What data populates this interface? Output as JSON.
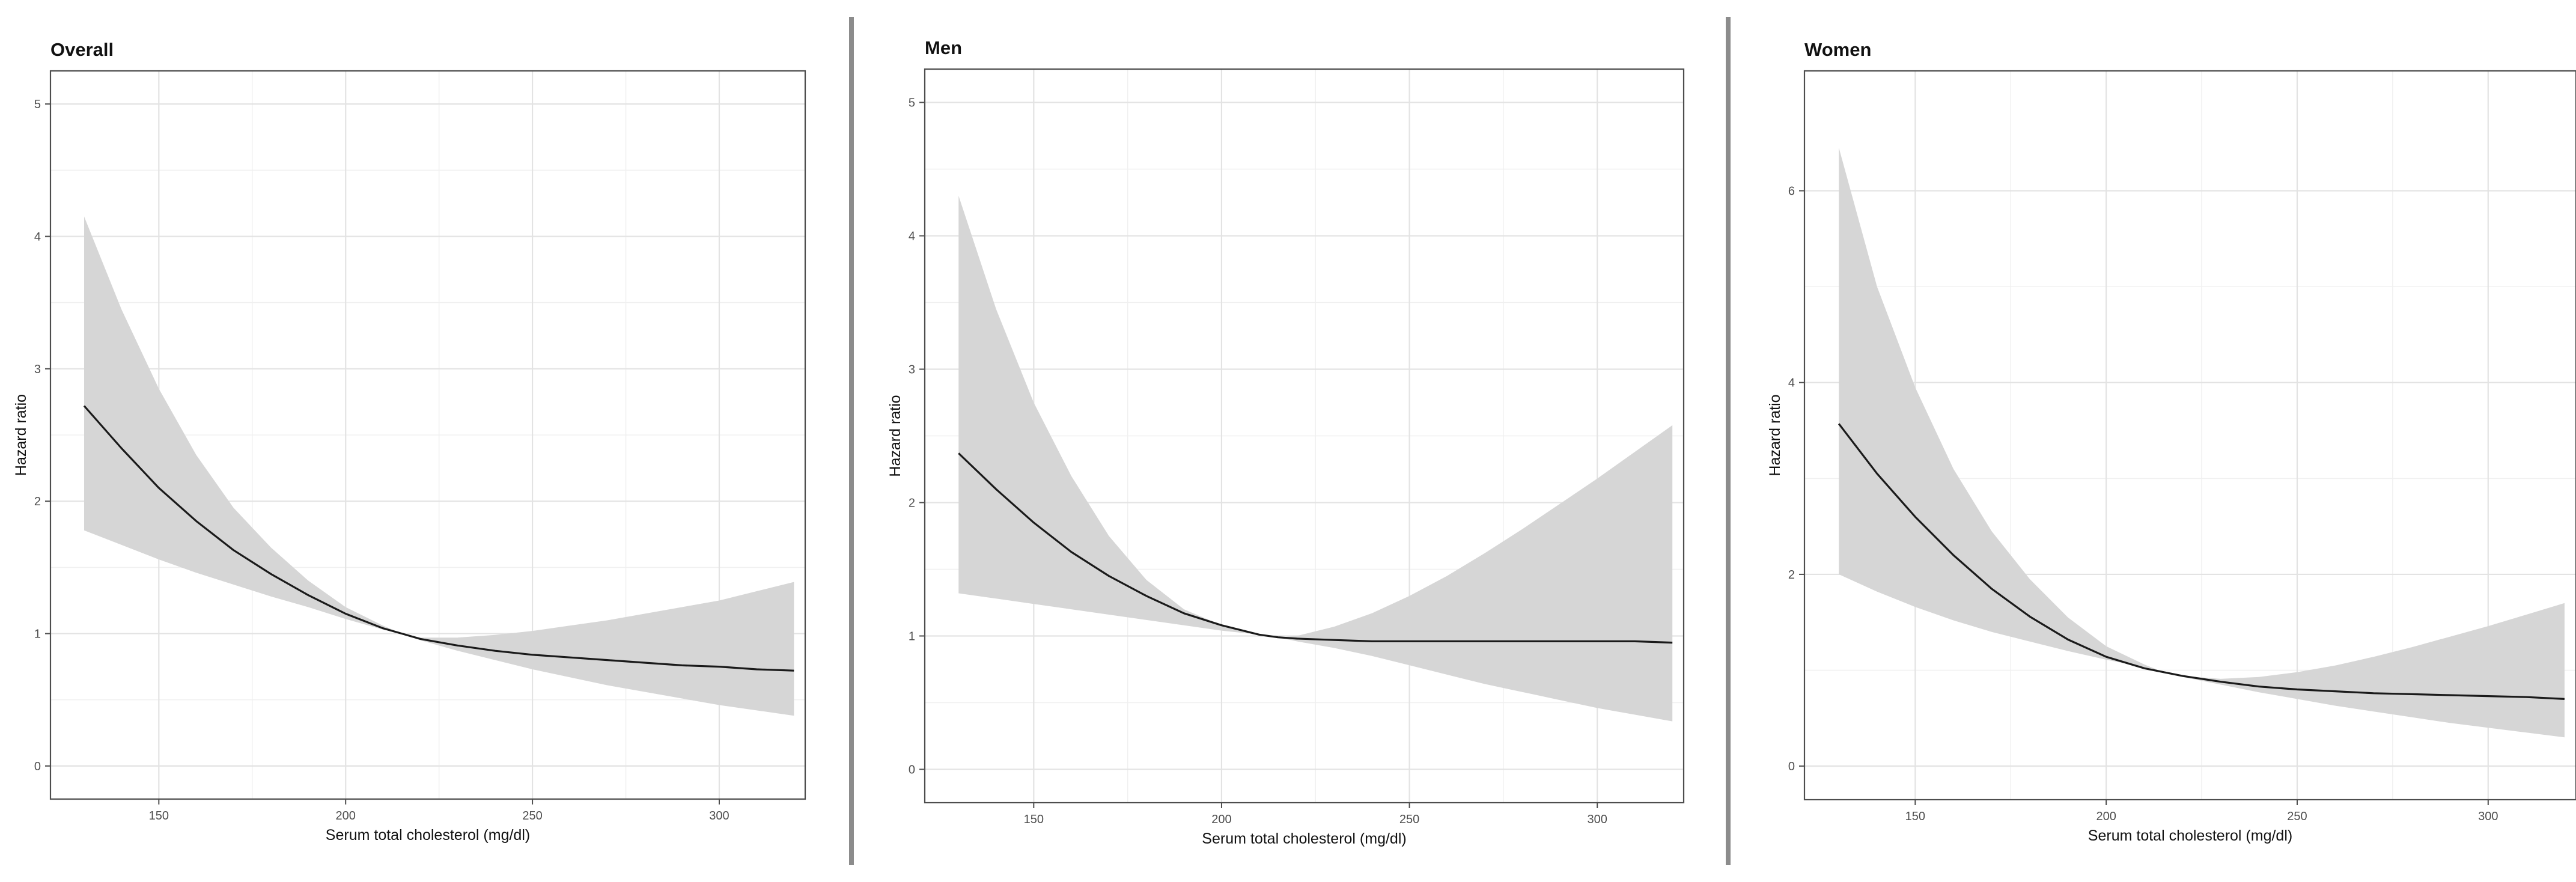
{
  "chart_data": [
    {
      "type": "line",
      "title": "Overall",
      "xlabel": "Serum total cholesterol (mg/dl)",
      "ylabel": "Hazard ratio",
      "xlim": [
        121,
        323
      ],
      "ylim": [
        -0.25,
        5.25
      ],
      "xticks": [
        "150",
        "200",
        "250",
        "300"
      ],
      "yticks": [
        "0",
        "1",
        "2",
        "3",
        "4",
        "5"
      ],
      "grid": true,
      "series": [
        {
          "x": [
            130,
            140,
            150,
            160,
            170,
            180,
            190,
            200,
            210,
            215,
            220,
            230,
            240,
            250,
            260,
            270,
            280,
            290,
            300,
            310,
            320
          ],
          "y": [
            2.72,
            2.4,
            2.1,
            1.85,
            1.63,
            1.45,
            1.29,
            1.15,
            1.04,
            1.0,
            0.96,
            0.91,
            0.87,
            0.84,
            0.82,
            0.8,
            0.78,
            0.76,
            0.75,
            0.73,
            0.72
          ],
          "lower": [
            1.78,
            1.67,
            1.56,
            1.46,
            1.37,
            1.28,
            1.2,
            1.11,
            1.03,
            1.0,
            0.95,
            0.87,
            0.8,
            0.73,
            0.67,
            0.61,
            0.56,
            0.51,
            0.46,
            0.42,
            0.38
          ],
          "upper": [
            4.15,
            3.45,
            2.85,
            2.35,
            1.95,
            1.65,
            1.4,
            1.2,
            1.06,
            1.0,
            0.97,
            0.97,
            0.99,
            1.02,
            1.06,
            1.1,
            1.15,
            1.2,
            1.25,
            1.32,
            1.39
          ]
        }
      ]
    },
    {
      "type": "line",
      "title": "Men",
      "xlabel": "Serum total cholesterol (mg/dl)",
      "ylabel": "Hazard ratio",
      "xlim": [
        121,
        323
      ],
      "ylim": [
        -0.25,
        5.25
      ],
      "xticks": [
        "150",
        "200",
        "250",
        "300"
      ],
      "yticks": [
        "0",
        "1",
        "2",
        "3",
        "4",
        "5"
      ],
      "grid": true,
      "series": [
        {
          "x": [
            130,
            140,
            150,
            160,
            170,
            180,
            190,
            200,
            210,
            215,
            220,
            230,
            240,
            250,
            260,
            270,
            280,
            290,
            300,
            310,
            320
          ],
          "y": [
            2.37,
            2.1,
            1.85,
            1.63,
            1.45,
            1.3,
            1.17,
            1.08,
            1.01,
            0.99,
            0.98,
            0.97,
            0.96,
            0.96,
            0.96,
            0.96,
            0.96,
            0.96,
            0.96,
            0.96,
            0.95
          ],
          "lower": [
            1.32,
            1.28,
            1.24,
            1.2,
            1.16,
            1.12,
            1.08,
            1.04,
            1.01,
            0.99,
            0.96,
            0.91,
            0.85,
            0.78,
            0.71,
            0.64,
            0.58,
            0.52,
            0.46,
            0.41,
            0.36
          ],
          "upper": [
            4.3,
            3.45,
            2.75,
            2.2,
            1.75,
            1.42,
            1.2,
            1.08,
            1.01,
            0.99,
            1.0,
            1.07,
            1.17,
            1.3,
            1.45,
            1.62,
            1.8,
            1.99,
            2.18,
            2.38,
            2.58
          ]
        }
      ]
    },
    {
      "type": "line",
      "title": "Women",
      "xlabel": "Serum total cholesterol (mg/dl)",
      "ylabel": "Hazard ratio",
      "xlim": [
        121,
        323
      ],
      "ylim": [
        -0.35,
        7.25
      ],
      "xticks": [
        "150",
        "200",
        "250",
        "300"
      ],
      "yticks": [
        "0",
        "2",
        "4",
        "6"
      ],
      "grid": true,
      "series": [
        {
          "x": [
            130,
            140,
            150,
            160,
            170,
            180,
            190,
            200,
            210,
            215,
            220,
            230,
            240,
            250,
            260,
            270,
            280,
            290,
            300,
            310,
            320
          ],
          "y": [
            3.57,
            3.05,
            2.6,
            2.2,
            1.85,
            1.56,
            1.32,
            1.14,
            1.02,
            0.98,
            0.94,
            0.88,
            0.83,
            0.8,
            0.78,
            0.76,
            0.75,
            0.74,
            0.73,
            0.72,
            0.7
          ],
          "lower": [
            2.0,
            1.82,
            1.66,
            1.52,
            1.4,
            1.3,
            1.2,
            1.11,
            1.03,
            0.98,
            0.93,
            0.85,
            0.77,
            0.7,
            0.63,
            0.57,
            0.51,
            0.45,
            0.4,
            0.35,
            0.3
          ],
          "upper": [
            6.45,
            5.0,
            3.95,
            3.1,
            2.45,
            1.95,
            1.55,
            1.25,
            1.06,
            0.98,
            0.94,
            0.91,
            0.93,
            0.98,
            1.05,
            1.14,
            1.24,
            1.35,
            1.46,
            1.58,
            1.7
          ]
        }
      ]
    }
  ]
}
